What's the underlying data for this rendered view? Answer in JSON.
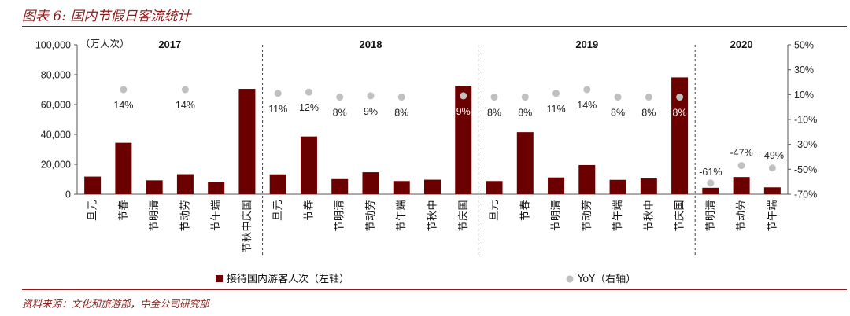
{
  "figure": {
    "title": "图表 6:  国内节假日客流统计",
    "source": "资料来源：文化和旅游部，中金公司研究部"
  },
  "chart_data": {
    "type": "bar",
    "title": "国内节假日客流统计",
    "left_axis_unit": "（万人次）",
    "ylim": [
      0,
      100000
    ],
    "y_ticks": [
      "0",
      "20,000",
      "40,000",
      "60,000",
      "80,000",
      "100,000"
    ],
    "y2lim": [
      -70,
      50
    ],
    "y2_ticks": [
      "-70%",
      "-50%",
      "-30%",
      "-10%",
      "10%",
      "30%",
      "50%"
    ],
    "groups": [
      {
        "year": "2017",
        "categories": [
          "元旦",
          "春节",
          "清明节",
          "劳动节",
          "端午节",
          "国庆中秋节"
        ]
      },
      {
        "year": "2018",
        "categories": [
          "元旦",
          "春节",
          "清明节",
          "劳动节",
          "端午节",
          "中秋节",
          "国庆节"
        ]
      },
      {
        "year": "2019",
        "categories": [
          "元旦",
          "春节",
          "清明节",
          "劳动节",
          "端午节",
          "中秋节",
          "国庆节"
        ]
      },
      {
        "year": "2020",
        "categories": [
          "清明节",
          "劳动节",
          "端午节"
        ]
      }
    ],
    "series": [
      {
        "name": "接待国内游客人次（左轴）",
        "axis": "left",
        "color": "#6B0000",
        "values": [
          11800,
          34400,
          9300,
          13400,
          8300,
          70500,
          13300,
          38600,
          10100,
          14700,
          8800,
          9700,
          72600,
          8800,
          41500,
          11200,
          19500,
          9600,
          10500,
          78200,
          4300,
          11500,
          4600
        ]
      },
      {
        "name": "YoY（右轴）",
        "axis": "right",
        "color": "#C0C0C0",
        "values": [
          null,
          14,
          null,
          14,
          null,
          null,
          11,
          12,
          8,
          9,
          8,
          null,
          9,
          8,
          8,
          11,
          14,
          8,
          8,
          8,
          -61,
          -47,
          -49
        ],
        "labels": [
          "",
          "14%",
          "",
          "14%",
          "",
          "",
          "11%",
          "12%",
          "8%",
          "9%",
          "8%",
          "",
          "9%",
          "8%",
          "8%",
          "11%",
          "14%",
          "8%",
          "8%",
          "8%",
          "-61%",
          "-47%",
          "-49%"
        ]
      }
    ],
    "legend": [
      "接待国内游客人次（左轴）",
      "YoY（右轴）"
    ],
    "legend_position": "bottom"
  }
}
